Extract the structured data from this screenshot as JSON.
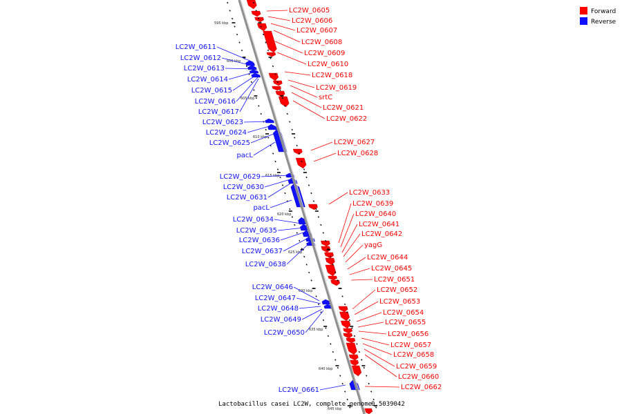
{
  "colors": {
    "forward": "#ff0000",
    "reverse": "#1010ff",
    "backbone": "#909090",
    "tick": "#000000"
  },
  "legend": [
    {
      "label": "Forward",
      "strand": "forward"
    },
    {
      "label": "Reverse",
      "strand": "reverse"
    }
  ],
  "footer": {
    "genome": "Lactobacillus casei LC2W, complete genome.",
    "position": "0.5039042"
  },
  "scale_labels": [
    "595 kbp",
    "600 kbp",
    "605 kbp",
    "610 kbp",
    "615 kbp",
    "620 kbp",
    "625 kbp",
    "630 kbp",
    "635 kbp",
    "640 kbp",
    "645 kbp"
  ],
  "forward_labels": [
    "LC2W_0605",
    "LC2W_0606",
    "LC2W_0607",
    "LC2W_0608",
    "LC2W_0609",
    "LC2W_0610",
    "LC2W_0618",
    "LC2W_0619",
    "srtC",
    "LC2W_0621",
    "LC2W_0622",
    "LC2W_0627",
    "LC2W_0628",
    "LC2W_0633",
    "LC2W_0639",
    "LC2W_0640",
    "LC2W_0641",
    "LC2W_0642",
    "yagG",
    "LC2W_0644",
    "LC2W_0645",
    "LC2W_0651",
    "LC2W_0652",
    "LC2W_0653",
    "LC2W_0654",
    "LC2W_0655",
    "LC2W_0656",
    "LC2W_0657",
    "LC2W_0658",
    "LC2W_0659",
    "LC2W_0660",
    "LC2W_0662"
  ],
  "reverse_labels": [
    "LC2W_0611",
    "LC2W_0612",
    "LC2W_0613",
    "LC2W_0614",
    "LC2W_0615",
    "LC2W_0616",
    "LC2W_0617",
    "LC2W_0623",
    "LC2W_0624",
    "LC2W_0625",
    "pacL",
    "LC2W_0629",
    "LC2W_0630",
    "LC2W_0631",
    "pacL",
    "LC2W_0634",
    "LC2W_0635",
    "LC2W_0636",
    "LC2W_0637",
    "LC2W_0638",
    "LC2W_0646",
    "LC2W_0647",
    "LC2W_0648",
    "LC2W_0649",
    "LC2W_0650",
    "LC2W_0661"
  ]
}
